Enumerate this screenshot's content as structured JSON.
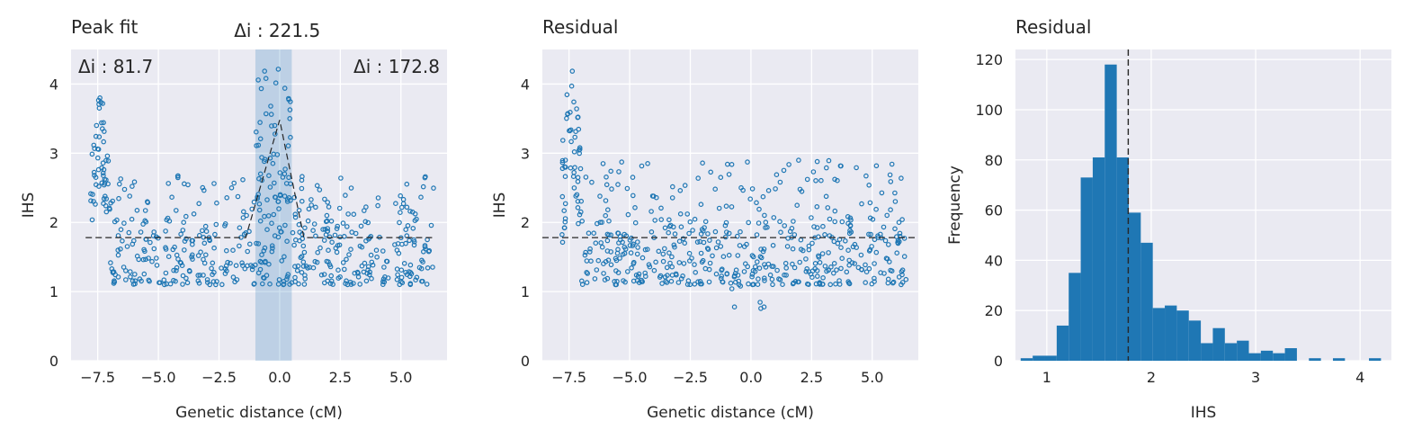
{
  "colors": {
    "face": "#eaeaf2",
    "grid": "#ffffff",
    "point": "#1f77b4",
    "bar": "#1f77b4",
    "window": "#1f77b4",
    "dash": "#262626"
  },
  "chart_data": [
    {
      "type": "scatter",
      "title": "Peak fit",
      "xlabel": "Genetic distance (cM)",
      "ylabel": "IHS",
      "xlim": [
        -8.6,
        6.9
      ],
      "ylim": [
        0,
        4.5
      ],
      "xticks": [
        -7.5,
        -5.0,
        -2.5,
        0.0,
        2.5,
        5.0
      ],
      "xtick_labels": [
        "−7.5",
        "−5.0",
        "−2.5",
        "0.0",
        "2.5",
        "5.0"
      ],
      "yticks": [
        0,
        1,
        2,
        3,
        4
      ],
      "ytick_labels": [
        "0",
        "1",
        "2",
        "3",
        "4"
      ],
      "grid": true,
      "baseline": 1.78,
      "peak": {
        "x": 0.0,
        "y": 3.48
      },
      "window": [
        -1.0,
        0.5
      ],
      "annotations": {
        "center": "Δi : 221.5",
        "left": "Δi : 81.7",
        "right": "Δi : 172.8"
      },
      "clusters": [
        {
          "x": [
            -7.8,
            -7.0
          ],
          "ymin": 1.5,
          "ymax": 3.8,
          "count": 55
        },
        {
          "x": [
            -7.0,
            6.4
          ],
          "ymin": 1.1,
          "ymax": 2.0,
          "count": 380
        },
        {
          "x": [
            -7.0,
            6.4
          ],
          "ymin": 2.0,
          "ymax": 2.7,
          "count": 110
        },
        {
          "x": [
            -1.0,
            0.5
          ],
          "ymin": 2.3,
          "ymax": 4.3,
          "count": 55
        }
      ]
    },
    {
      "type": "scatter",
      "title": "Residual",
      "xlabel": "Genetic distance (cM)",
      "ylabel": "IHS",
      "xlim": [
        -8.6,
        6.9
      ],
      "ylim": [
        0,
        4.5
      ],
      "xticks": [
        -7.5,
        -5.0,
        -2.5,
        0.0,
        2.5,
        5.0
      ],
      "xtick_labels": [
        "−7.5",
        "−5.0",
        "−2.5",
        "0.0",
        "2.5",
        "5.0"
      ],
      "yticks": [
        0,
        1,
        2,
        3,
        4
      ],
      "ytick_labels": [
        "0",
        "1",
        "2",
        "3",
        "4"
      ],
      "grid": true,
      "baseline": 1.78,
      "clusters": [
        {
          "x": [
            -7.8,
            -7.0
          ],
          "ymin": 1.5,
          "ymax": 4.2,
          "count": 55
        },
        {
          "x": [
            -7.0,
            6.4
          ],
          "ymin": 1.1,
          "ymax": 2.0,
          "count": 390
        },
        {
          "x": [
            -7.0,
            6.4
          ],
          "ymin": 2.0,
          "ymax": 2.9,
          "count": 120
        },
        {
          "x": [
            -0.8,
            0.6
          ],
          "ymin": 0.75,
          "ymax": 1.2,
          "count": 8
        }
      ]
    },
    {
      "type": "bar",
      "title": "Residual",
      "xlabel": "IHS",
      "ylabel": "Frequency",
      "xlim": [
        0.7,
        4.3
      ],
      "ylim": [
        0,
        124
      ],
      "xticks": [
        1,
        2,
        3,
        4
      ],
      "xtick_labels": [
        "1",
        "2",
        "3",
        "4"
      ],
      "yticks": [
        0,
        20,
        40,
        60,
        80,
        100,
        120
      ],
      "ytick_labels": [
        "0",
        "20",
        "40",
        "60",
        "80",
        "100",
        "120"
      ],
      "grid": true,
      "vline": 1.78,
      "bin_start": 0.75,
      "bin_width": 0.115,
      "values": [
        1,
        2,
        2,
        14,
        35,
        73,
        81,
        118,
        81,
        59,
        47,
        21,
        22,
        20,
        16,
        7,
        13,
        7,
        8,
        3,
        4,
        3,
        5,
        0,
        1,
        0,
        1,
        0,
        0,
        1
      ]
    }
  ]
}
